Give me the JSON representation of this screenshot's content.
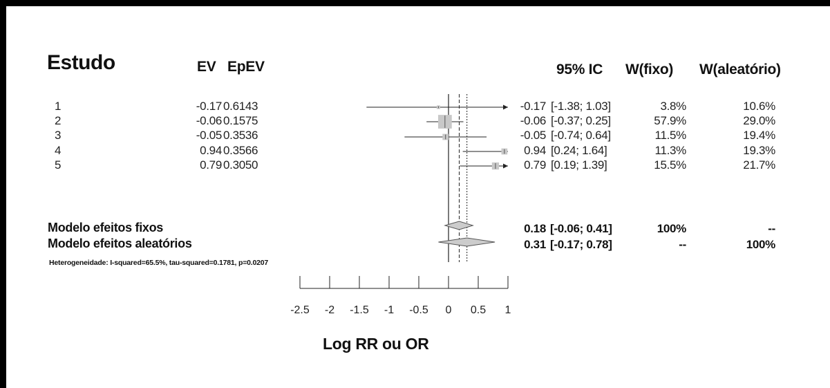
{
  "chart_data": {
    "type": "forest",
    "headers": {
      "study": "Estudo",
      "ev": "EV",
      "epev": "EpEV",
      "ci": "95% IC",
      "w_fixed": "W(fixo)",
      "w_random": "W(aleatório)"
    },
    "studies": [
      {
        "label": "1",
        "ev": "-0.17",
        "epev": "0.6143",
        "est": "-0.17",
        "ci_text": "[-1.38; 1.03]",
        "w_fixed": "3.8%",
        "w_random": "10.6%",
        "value": -0.17,
        "lower": -1.38,
        "upper": 1.03,
        "weight": 3.8
      },
      {
        "label": "2",
        "ev": "-0.06",
        "epev": "0.1575",
        "est": "-0.06",
        "ci_text": "[-0.37; 0.25]",
        "w_fixed": "57.9%",
        "w_random": "29.0%",
        "value": -0.06,
        "lower": -0.37,
        "upper": 0.25,
        "weight": 57.9
      },
      {
        "label": "3",
        "ev": "-0.05",
        "epev": "0.3536",
        "est": "-0.05",
        "ci_text": "[-0.74; 0.64]",
        "w_fixed": "11.5%",
        "w_random": "19.4%",
        "value": -0.05,
        "lower": -0.74,
        "upper": 0.64,
        "weight": 11.5
      },
      {
        "label": "4",
        "ev": "0.94",
        "epev": "0.3566",
        "est": "0.94",
        "ci_text": "[0.24; 1.64]",
        "w_fixed": "11.3%",
        "w_random": "19.3%",
        "value": 0.94,
        "lower": 0.24,
        "upper": 1.64,
        "weight": 11.3
      },
      {
        "label": "5",
        "ev": "0.79",
        "epev": "0.3050",
        "est": "0.79",
        "ci_text": "[0.19; 1.39]",
        "w_fixed": "15.5%",
        "w_random": "21.7%",
        "value": 0.79,
        "lower": 0.19,
        "upper": 1.39,
        "weight": 15.5
      }
    ],
    "models": [
      {
        "label": "Modelo efeitos fixos",
        "est": "0.18",
        "ci_text": "[-0.06; 0.41]",
        "w_fixed": "100%",
        "w_random": "--",
        "value": 0.18,
        "lower": -0.06,
        "upper": 0.41
      },
      {
        "label": "Modelo efeitos aleatórios",
        "est": "0.31",
        "ci_text": "[-0.17; 0.78]",
        "w_fixed": "--",
        "w_random": "100%",
        "value": 0.31,
        "lower": -0.17,
        "upper": 0.78
      }
    ],
    "heterogeneity": "Heterogeneidade: I-squared=65.5%, tau-squared=0.1781, p=0.0207",
    "xlabel": "Log RR ou OR",
    "xlim": [
      -2.5,
      1
    ],
    "xticks": [
      -2.5,
      -2,
      -1.5,
      -1,
      -0.5,
      0,
      0.5,
      1
    ],
    "xtick_labels": [
      "-2.5",
      "-2",
      "-1.5",
      "-1",
      "-0.5",
      "0",
      "0.5",
      "1"
    ],
    "reference_line": 0,
    "colors": {
      "box": "#c8c8c8",
      "diamond": "#cccccc",
      "line": "#222222"
    }
  }
}
